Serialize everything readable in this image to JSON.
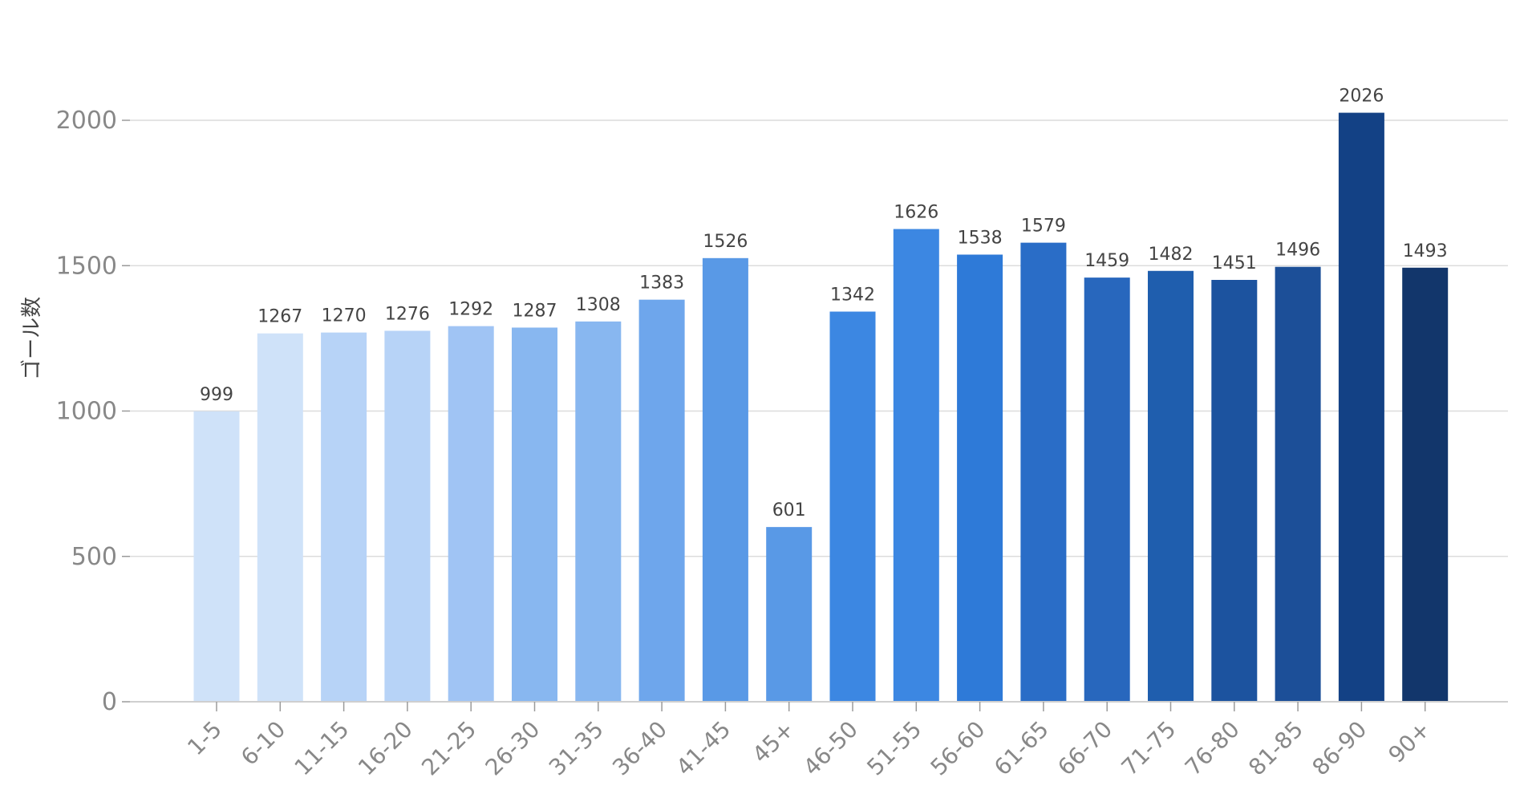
{
  "chart_data": {
    "type": "bar",
    "title": "",
    "xlabel": "",
    "ylabel": "ゴール数",
    "ylim": [
      0,
      2200
    ],
    "yticks": [
      0,
      500,
      1000,
      1500,
      2000
    ],
    "grid": true,
    "categories": [
      "1-5",
      "6-10",
      "11-15",
      "16-20",
      "21-25",
      "26-30",
      "31-35",
      "36-40",
      "41-45",
      "45+",
      "46-50",
      "51-55",
      "56-60",
      "61-65",
      "66-70",
      "71-75",
      "76-80",
      "81-85",
      "86-90",
      "90+"
    ],
    "values": [
      999,
      1267,
      1270,
      1276,
      1292,
      1287,
      1308,
      1383,
      1526,
      601,
      1342,
      1626,
      1538,
      1579,
      1459,
      1482,
      1451,
      1496,
      2026,
      1493
    ],
    "colors": [
      "#cfe2f9",
      "#cfe2f9",
      "#b7d3f7",
      "#b7d3f7",
      "#a0c4f4",
      "#88b7f0",
      "#88b7f0",
      "#6ea6ec",
      "#5999e6",
      "#5999e6",
      "#3c87e2",
      "#3c87e2",
      "#2e7ad8",
      "#2a6dc7",
      "#2867bd",
      "#1f5eae",
      "#1c539f",
      "#1c4f98",
      "#134185",
      "#12366b"
    ]
  }
}
